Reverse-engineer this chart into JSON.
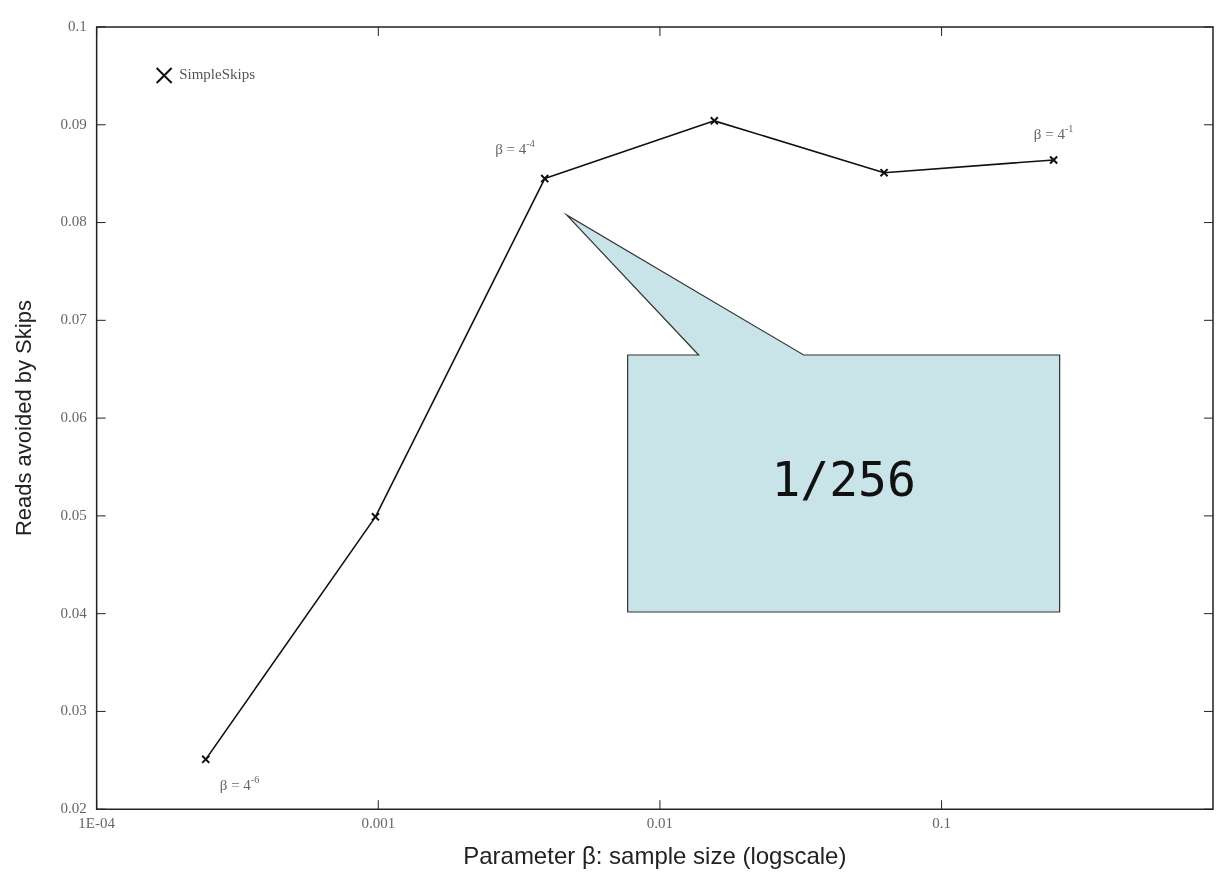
{
  "chart_data": {
    "type": "line",
    "xlabel": "Parameter β: sample size (logscale)",
    "ylabel": "Reads avoided by Skips",
    "x": [
      0.000244,
      0.000977,
      0.0039,
      0.0156,
      0.0625,
      0.25
    ],
    "series": [
      {
        "name": "SimpleSkips",
        "color": "#111111",
        "values": [
          0.0251,
          0.0499,
          0.0845,
          0.0904,
          0.0851,
          0.0864
        ]
      }
    ],
    "log": "x",
    "xlim": [
      0.0001,
      0.92
    ],
    "xticks": [
      {
        "value": 0.0001,
        "label": "1E-04"
      },
      0.001,
      0.01,
      0.1
    ],
    "ylim": [
      0.02,
      0.1
    ],
    "yticks": [
      0.02,
      0.03,
      0.04,
      0.05,
      0.06,
      0.07,
      0.08,
      0.09,
      0.1
    ],
    "grid": false,
    "legend": "top left",
    "marker": "cross",
    "line_style": "solid",
    "annotations": [
      {
        "text": "β = 4$^{-6}$",
        "x": 0.000244,
        "y": 0.0251
      },
      {
        "text": "β = 4$^{-4}$",
        "x": 0.0039,
        "y": 0.0845
      },
      {
        "text": "β = 4$^{-1}$",
        "x": 0.25,
        "y": 0.0864
      },
      "1/256"
    ]
  }
}
